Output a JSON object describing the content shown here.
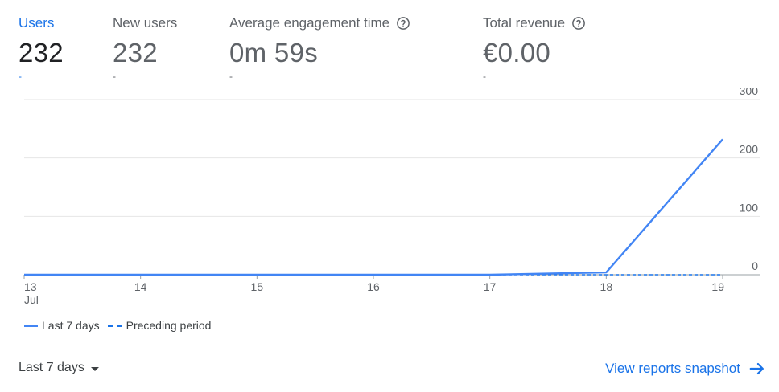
{
  "metrics": [
    {
      "label": "Users",
      "value": "232",
      "change": "-",
      "active": true,
      "help": false
    },
    {
      "label": "New users",
      "value": "232",
      "change": "-",
      "active": false,
      "help": false
    },
    {
      "label": "Average engagement time",
      "value": "0m 59s",
      "change": "-",
      "active": false,
      "help": true
    },
    {
      "label": "Total revenue",
      "value": "€0.00",
      "change": "-",
      "active": false,
      "help": true
    }
  ],
  "chart_data": {
    "type": "line",
    "x": [
      "13",
      "14",
      "15",
      "16",
      "17",
      "18",
      "19"
    ],
    "x_month_label": "Jul",
    "ylim": [
      0,
      300
    ],
    "y_ticks": [
      0,
      100,
      200,
      300
    ],
    "grid": true,
    "series": [
      {
        "name": "Last 7 days",
        "values": [
          0,
          0,
          0,
          0,
          0,
          4,
          232
        ],
        "style": "solid",
        "color": "#4285f4"
      },
      {
        "name": "Preceding period",
        "values": [
          0,
          0,
          0,
          0,
          0,
          0,
          0
        ],
        "style": "dashed",
        "color": "#1a73e8"
      }
    ],
    "legend_position": "bottom-left"
  },
  "footer": {
    "date_range": "Last 7 days",
    "snapshot_link": "View reports snapshot"
  },
  "colors": {
    "accent": "#1a73e8",
    "line": "#4285f4",
    "grid": "#e0e0e0",
    "axis": "#5f6368"
  }
}
